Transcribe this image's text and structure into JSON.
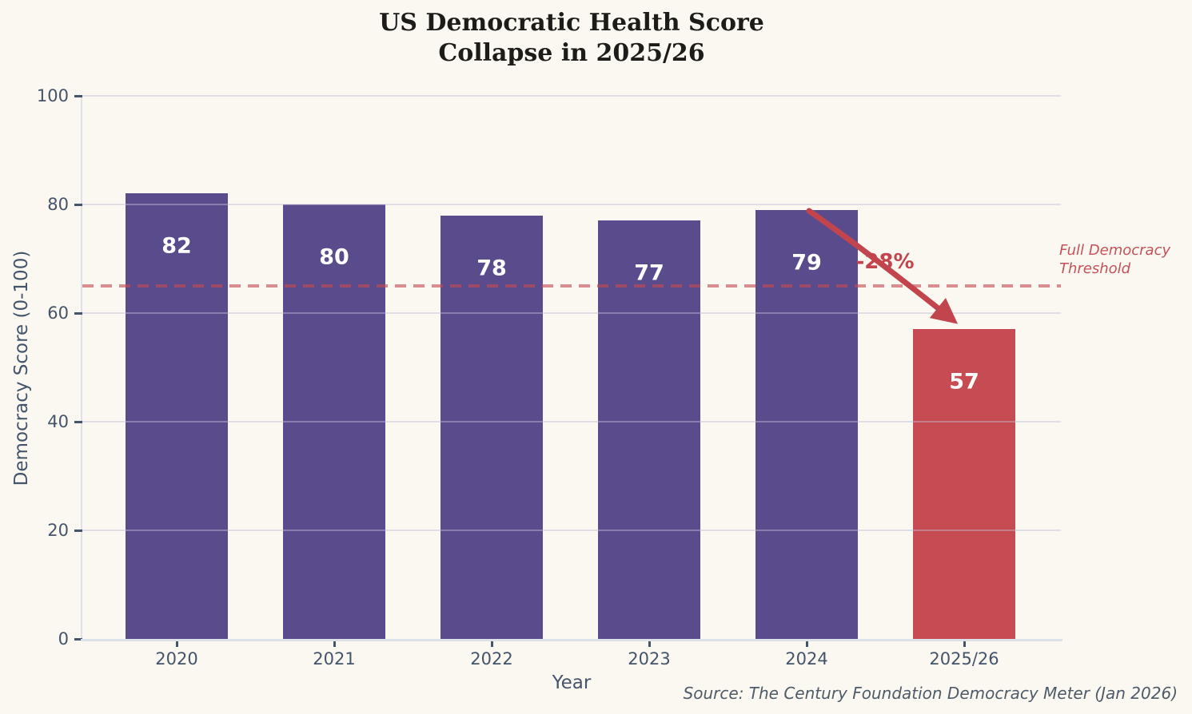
{
  "title": {
    "line1": "US Democratic Health Score",
    "line2": "Collapse in 2025/26"
  },
  "chart_data": {
    "type": "bar",
    "title": "US Democratic Health Score Collapse in 2025/26",
    "categories": [
      "2020",
      "2021",
      "2022",
      "2023",
      "2024",
      "2025/26"
    ],
    "values": [
      82,
      80,
      78,
      77,
      79,
      57
    ],
    "bar_colors": [
      "#594b8c",
      "#594b8c",
      "#594b8c",
      "#594b8c",
      "#594b8c",
      "#c74b52"
    ],
    "xlabel": "Year",
    "ylabel": "Democracy Score (0-100)",
    "ylim": [
      0,
      100
    ],
    "yticks": [
      0,
      20,
      40,
      60,
      80,
      100
    ],
    "grid": true,
    "legend": "none",
    "threshold": {
      "value": 65,
      "label_line1": "Full Democracy",
      "label_line2": "Threshold",
      "color": "#c7494f"
    },
    "annotation": {
      "text": "-28%",
      "from_category": "2024",
      "from_value": 79,
      "to_category": "2025/26",
      "to_value": 57,
      "color": "#c2454e"
    }
  },
  "source": "Source: The Century Foundation Democracy Meter (Jan 2026)",
  "colors": {
    "background": "#fbf8f1",
    "bar_purple": "#594b8c",
    "bar_red": "#c74b52",
    "annotation_red": "#c2454e",
    "threshold_red": "#c7494f",
    "tick_text": "#44546a",
    "title_text": "#1d1c19"
  }
}
